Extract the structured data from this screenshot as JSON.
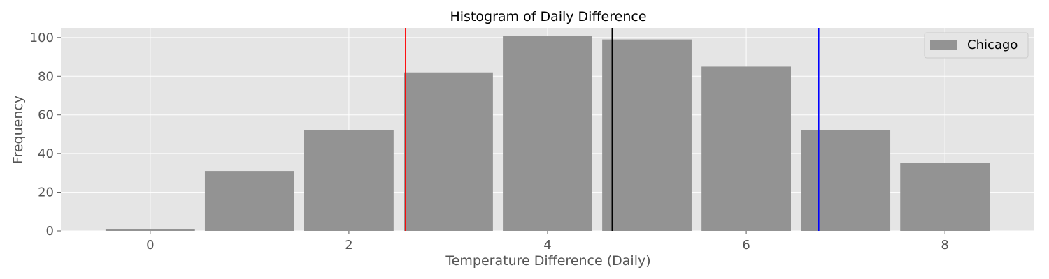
{
  "chart_data": {
    "type": "bar",
    "title": "Histogram of Daily Difference",
    "xlabel": "Temperature Difference (Daily)",
    "ylabel": "Frequency",
    "xlim": [
      -0.9,
      8.9
    ],
    "ylim": [
      0,
      105
    ],
    "bar_width": 0.9,
    "x_ticks": [
      0,
      2,
      4,
      6,
      8
    ],
    "y_ticks": [
      0,
      20,
      40,
      60,
      80,
      100
    ],
    "grid": true,
    "legend_position": "top-right",
    "series": [
      {
        "name": "Chicago",
        "color": "#939393",
        "x": [
          0,
          1,
          2,
          3,
          4,
          5,
          6,
          7,
          8
        ],
        "values": [
          1,
          31,
          52,
          82,
          101,
          99,
          85,
          52,
          35
        ]
      }
    ],
    "reference_lines": [
      {
        "x": 2.57,
        "color": "#ff0000"
      },
      {
        "x": 4.65,
        "color": "#000000"
      },
      {
        "x": 6.73,
        "color": "#0000ff"
      }
    ],
    "colors": {
      "plot_background": "#e5e5e5",
      "grid": "#ffffff",
      "tick_text": "#555555"
    }
  }
}
